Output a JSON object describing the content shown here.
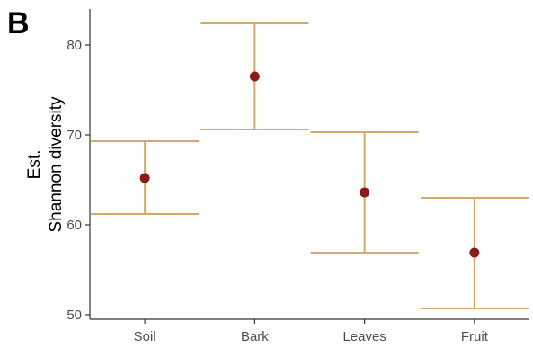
{
  "chart_data": {
    "type": "scatter",
    "panel_label": "B",
    "title": "",
    "xlabel": "",
    "ylabel_lines": [
      "Est.",
      "Shannon diversity"
    ],
    "categories": [
      "Soil",
      "Bark",
      "Leaves",
      "Fruit"
    ],
    "series": [
      {
        "values": [
          65.2,
          76.5,
          63.6,
          56.9
        ],
        "lower": [
          61.2,
          70.6,
          56.9,
          50.7
        ],
        "upper": [
          69.3,
          82.4,
          70.3,
          63.0
        ]
      }
    ],
    "ylim": [
      49.5,
      84.0
    ],
    "yticks": [
      50,
      60,
      70,
      80
    ],
    "grid": false,
    "colors": {
      "point": "#8b1a1a",
      "errorbar": "#d4a76a",
      "axis": "#333333"
    }
  }
}
